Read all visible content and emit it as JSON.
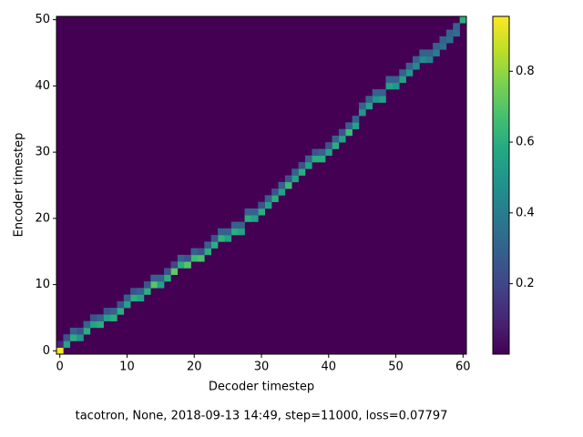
{
  "chart_data": {
    "type": "heatmap",
    "xlabel": "Decoder timestep",
    "ylabel": "Encoder timestep",
    "caption": "tacotron, None, 2018-09-13 14:49, step=11000, loss=0.07797",
    "colormap": "viridis",
    "x": [
      0,
      1,
      2,
      3,
      4,
      5,
      6,
      7,
      8,
      9,
      10,
      11,
      12,
      13,
      14,
      15,
      16,
      17,
      18,
      19,
      20,
      21,
      22,
      23,
      24,
      25,
      26,
      27,
      28,
      29,
      30,
      31,
      32,
      33,
      34,
      35,
      36,
      37,
      38,
      39,
      40,
      41,
      42,
      43,
      44,
      45,
      46,
      47,
      48,
      49,
      50,
      51,
      52,
      53,
      54,
      55,
      56,
      57,
      58,
      59,
      60,
      0,
      1,
      2,
      3,
      4,
      5,
      6,
      7,
      8,
      9,
      10,
      11,
      12,
      13,
      14,
      15,
      16,
      17,
      18,
      19,
      20,
      21,
      22,
      23,
      24,
      25,
      26,
      27,
      28,
      29,
      30,
      31,
      32,
      33,
      34,
      35,
      36,
      37,
      38,
      39,
      40,
      41,
      42,
      43,
      44,
      45,
      46,
      47,
      48,
      49,
      50,
      51,
      52,
      53,
      54,
      55,
      56,
      57,
      58,
      59
    ],
    "y": [
      0,
      1,
      2,
      2,
      3,
      4,
      4,
      5,
      5,
      6,
      7,
      8,
      8,
      9,
      10,
      10,
      11,
      12,
      13,
      13,
      14,
      14,
      15,
      16,
      17,
      17,
      18,
      18,
      20,
      20,
      21,
      22,
      23,
      24,
      25,
      26,
      27,
      28,
      29,
      29,
      30,
      31,
      32,
      33,
      34,
      36,
      37,
      38,
      38,
      40,
      40,
      41,
      42,
      43,
      44,
      44,
      45,
      46,
      47,
      48,
      50,
      1,
      2,
      3,
      3,
      4,
      5,
      5,
      6,
      6,
      7,
      8,
      9,
      9,
      10,
      11,
      11,
      12,
      13,
      14,
      14,
      15,
      15,
      16,
      17,
      18,
      18,
      19,
      19,
      21,
      21,
      22,
      23,
      24,
      25,
      26,
      27,
      28,
      29,
      30,
      30,
      31,
      32,
      33,
      34,
      35,
      37,
      38,
      39,
      39,
      41,
      41,
      42,
      43,
      44,
      45,
      45,
      46,
      47,
      48,
      49
    ],
    "values": [
      0.95,
      0.55,
      0.6,
      0.5,
      0.6,
      0.55,
      0.6,
      0.55,
      0.6,
      0.6,
      0.55,
      0.6,
      0.55,
      0.6,
      0.7,
      0.55,
      0.6,
      0.72,
      0.6,
      0.7,
      0.65,
      0.68,
      0.6,
      0.6,
      0.62,
      0.55,
      0.6,
      0.55,
      0.6,
      0.55,
      0.6,
      0.55,
      0.6,
      0.55,
      0.65,
      0.55,
      0.6,
      0.55,
      0.6,
      0.6,
      0.55,
      0.6,
      0.55,
      0.65,
      0.55,
      0.5,
      0.55,
      0.5,
      0.55,
      0.55,
      0.5,
      0.55,
      0.5,
      0.45,
      0.45,
      0.4,
      0.4,
      0.35,
      0.35,
      0.35,
      0.6,
      0.1,
      0.25,
      0.3,
      0.25,
      0.3,
      0.25,
      0.3,
      0.25,
      0.3,
      0.25,
      0.3,
      0.25,
      0.3,
      0.25,
      0.3,
      0.3,
      0.25,
      0.2,
      0.3,
      0.25,
      0.3,
      0.25,
      0.3,
      0.25,
      0.3,
      0.3,
      0.3,
      0.3,
      0.3,
      0.3,
      0.25,
      0.3,
      0.25,
      0.3,
      0.25,
      0.3,
      0.25,
      0.3,
      0.25,
      0.3,
      0.25,
      0.3,
      0.25,
      0.3,
      0.3,
      0.3,
      0.3,
      0.3,
      0.3,
      0.3,
      0.3,
      0.3,
      0.3,
      0.3,
      0.3,
      0.3,
      0.3,
      0.3,
      0.3,
      0.3
    ],
    "xlim": [
      -0.5,
      60.5
    ],
    "ylim": [
      -0.5,
      50.5
    ],
    "xticks": [
      0,
      10,
      20,
      30,
      40,
      50,
      60
    ],
    "yticks": [
      0,
      10,
      20,
      30,
      40,
      50
    ],
    "clim": [
      0.001,
      0.955
    ],
    "cticks": [
      0.2,
      0.4,
      0.6,
      0.8
    ]
  }
}
